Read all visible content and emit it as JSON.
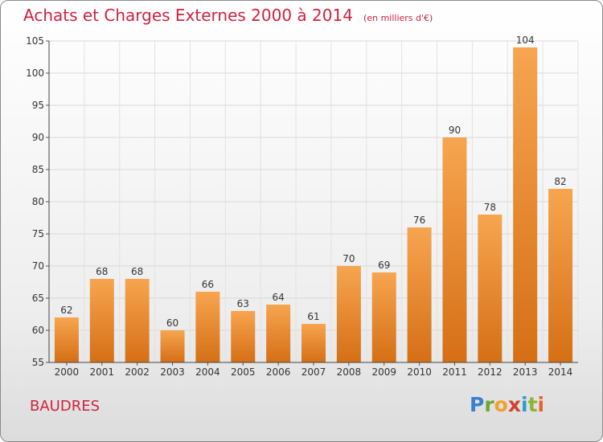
{
  "chart_data": {
    "type": "bar",
    "title": "Achats et Charges Externes 2000 à 2014",
    "subtitle": "(en milliers d'€)",
    "categories": [
      "2000",
      "2001",
      "2002",
      "2003",
      "2004",
      "2005",
      "2006",
      "2007",
      "2008",
      "2009",
      "2010",
      "2011",
      "2012",
      "2013",
      "2014"
    ],
    "values": [
      62,
      68,
      68,
      60,
      66,
      63,
      64,
      61,
      70,
      69,
      76,
      90,
      78,
      104,
      82
    ],
    "ylim": [
      55,
      105
    ],
    "yticks": [
      55,
      60,
      65,
      70,
      75,
      80,
      85,
      90,
      95,
      100,
      105
    ],
    "xlabel": "",
    "ylabel": "",
    "grid": true,
    "bar_color": "#f08a2a"
  },
  "footer": {
    "commune": "BAUDRES",
    "logo_letters": [
      "P",
      "r",
      "o",
      "x",
      "i",
      "t",
      "i"
    ]
  },
  "colors": {
    "title": "#d0223f",
    "bar_light": "#f7a550",
    "bar_dark": "#d56f15"
  }
}
